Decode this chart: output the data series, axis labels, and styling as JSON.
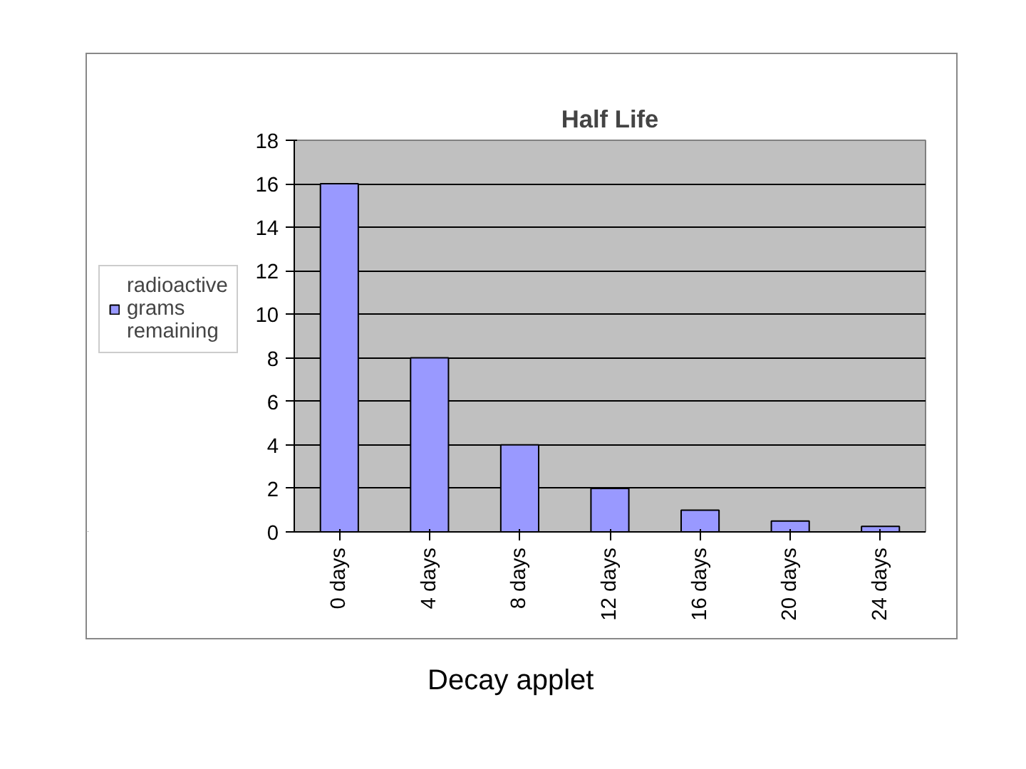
{
  "chart_data": {
    "type": "bar",
    "title": "Half Life",
    "categories": [
      "0 days",
      "4 days",
      "8 days",
      "12 days",
      "16 days",
      "20 days",
      "24 days"
    ],
    "series": [
      {
        "name": "radioactive grams remaining",
        "color": "#9999ff",
        "values": [
          16,
          8,
          4,
          2,
          1,
          0.5,
          0.25
        ]
      }
    ],
    "ylim": [
      0,
      18
    ],
    "yticks": [
      0,
      2,
      4,
      6,
      8,
      10,
      12,
      14,
      16,
      18
    ],
    "grid": "y",
    "legend": "left",
    "annotations": [
      "Decay applet"
    ]
  }
}
